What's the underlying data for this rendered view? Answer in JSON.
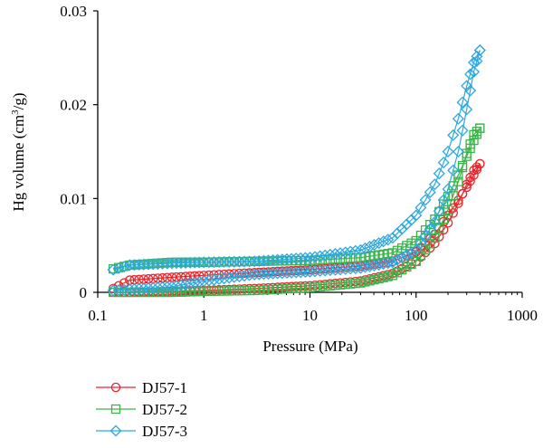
{
  "chart_data": {
    "type": "scatter",
    "xlabel": "Pressure (MPa)",
    "ylabel_main": "Hg volume (cm",
    "ylabel_sup": "3",
    "ylabel_end": "/g)",
    "xscale": "log",
    "xlim": [
      0.1,
      1000
    ],
    "ylim": [
      0,
      0.03
    ],
    "x_ticks": [
      "0.1",
      "1",
      "10",
      "100",
      "1000"
    ],
    "y_ticks": [
      "0",
      "0.01",
      "0.02",
      "0.03"
    ],
    "grid": false,
    "legend_position": "bottom-left",
    "series": [
      {
        "name": "DJ57-1",
        "color": "#e8262b",
        "marker": "circle",
        "intrusion": [
          [
            0.14,
            0.0
          ],
          [
            0.2,
            0.0
          ],
          [
            0.5,
            0.0001
          ],
          [
            1,
            0.0002
          ],
          [
            3,
            0.0004
          ],
          [
            10,
            0.0007
          ],
          [
            30,
            0.0012
          ],
          [
            60,
            0.002
          ],
          [
            100,
            0.0033
          ],
          [
            150,
            0.0052
          ],
          [
            200,
            0.0074
          ],
          [
            250,
            0.0095
          ],
          [
            300,
            0.0115
          ],
          [
            350,
            0.013
          ],
          [
            400,
            0.0137
          ]
        ],
        "extrusion": [
          [
            400,
            0.0137
          ],
          [
            350,
            0.0125
          ],
          [
            300,
            0.0112
          ],
          [
            250,
            0.0098
          ],
          [
            200,
            0.0082
          ],
          [
            150,
            0.0062
          ],
          [
            100,
            0.0043
          ],
          [
            60,
            0.0033
          ],
          [
            30,
            0.0028
          ],
          [
            10,
            0.0024
          ],
          [
            3,
            0.0021
          ],
          [
            1,
            0.0018
          ],
          [
            0.5,
            0.0016
          ],
          [
            0.2,
            0.0013
          ],
          [
            0.14,
            0.0004
          ]
        ]
      },
      {
        "name": "DJ57-2",
        "color": "#3bb54a",
        "marker": "square",
        "intrusion": [
          [
            0.14,
            0.0
          ],
          [
            0.2,
            0.0
          ],
          [
            0.5,
            0.0
          ],
          [
            1,
            0.0001
          ],
          [
            3,
            0.0002
          ],
          [
            10,
            0.0005
          ],
          [
            30,
            0.001
          ],
          [
            60,
            0.0018
          ],
          [
            100,
            0.0033
          ],
          [
            150,
            0.0058
          ],
          [
            200,
            0.0088
          ],
          [
            250,
            0.0118
          ],
          [
            300,
            0.0148
          ],
          [
            350,
            0.0168
          ],
          [
            400,
            0.0175
          ]
        ],
        "extrusion": [
          [
            400,
            0.0175
          ],
          [
            350,
            0.0162
          ],
          [
            300,
            0.0145
          ],
          [
            250,
            0.0125
          ],
          [
            200,
            0.0102
          ],
          [
            150,
            0.0078
          ],
          [
            100,
            0.0055
          ],
          [
            60,
            0.0042
          ],
          [
            30,
            0.0037
          ],
          [
            10,
            0.0034
          ],
          [
            3,
            0.0033
          ],
          [
            1,
            0.0032
          ],
          [
            0.5,
            0.0032
          ],
          [
            0.2,
            0.0029
          ],
          [
            0.14,
            0.0025
          ]
        ]
      },
      {
        "name": "DJ57-3",
        "color": "#2ba8e0",
        "marker": "diamond",
        "intrusion": [
          [
            0.14,
            0.0002
          ],
          [
            0.2,
            0.0003
          ],
          [
            0.5,
            0.0006
          ],
          [
            1,
            0.0012
          ],
          [
            3,
            0.0019
          ],
          [
            10,
            0.0022
          ],
          [
            30,
            0.0026
          ],
          [
            60,
            0.0032
          ],
          [
            100,
            0.0045
          ],
          [
            150,
            0.0075
          ],
          [
            200,
            0.011
          ],
          [
            250,
            0.015
          ],
          [
            300,
            0.0195
          ],
          [
            350,
            0.0235
          ],
          [
            400,
            0.0258
          ]
        ],
        "extrusion": [
          [
            400,
            0.0258
          ],
          [
            350,
            0.0245
          ],
          [
            300,
            0.022
          ],
          [
            250,
            0.0185
          ],
          [
            200,
            0.015
          ],
          [
            150,
            0.0115
          ],
          [
            100,
            0.0082
          ],
          [
            60,
            0.0058
          ],
          [
            30,
            0.0045
          ],
          [
            10,
            0.0037
          ],
          [
            3,
            0.0033
          ],
          [
            1,
            0.0032
          ],
          [
            0.5,
            0.0031
          ],
          [
            0.2,
            0.0029
          ],
          [
            0.14,
            0.0024
          ]
        ]
      }
    ]
  }
}
